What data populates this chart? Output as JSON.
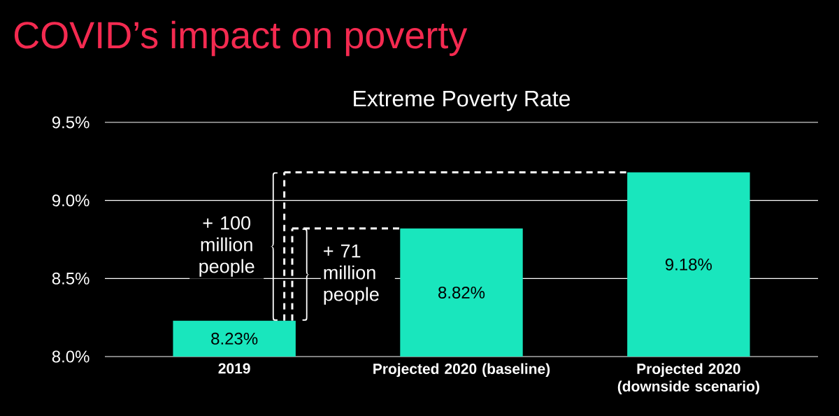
{
  "chart_data": {
    "type": "bar",
    "title": "COVID’s impact on poverty",
    "subtitle": "Extreme Poverty Rate",
    "categories": [
      "2019",
      "Projected 2020 (baseline)",
      "Projected 2020 (downside scenario)"
    ],
    "values": [
      8.23,
      8.82,
      9.18
    ],
    "color": "#19e6bd",
    "value_labels": [
      "8.23%",
      "8.82%",
      "9.18%"
    ],
    "ylim": [
      8.0,
      9.5
    ],
    "yticks": [
      {
        "value": 8.0,
        "label": "8.0%"
      },
      {
        "value": 8.5,
        "label": "8.5%"
      },
      {
        "value": 9.0,
        "label": "9.0%"
      },
      {
        "value": 9.5,
        "label": "9.5%"
      }
    ],
    "grid": "y",
    "ref_lines": [
      {
        "axis": "y",
        "value": 9.18,
        "color": "#ffffff",
        "line_style": "dashed"
      },
      {
        "axis": "y",
        "value": 8.82,
        "color": "#ffffff",
        "line_style": "dashed"
      }
    ],
    "annotations": [
      "+ 100 million people",
      "+ 71 million people"
    ]
  }
}
